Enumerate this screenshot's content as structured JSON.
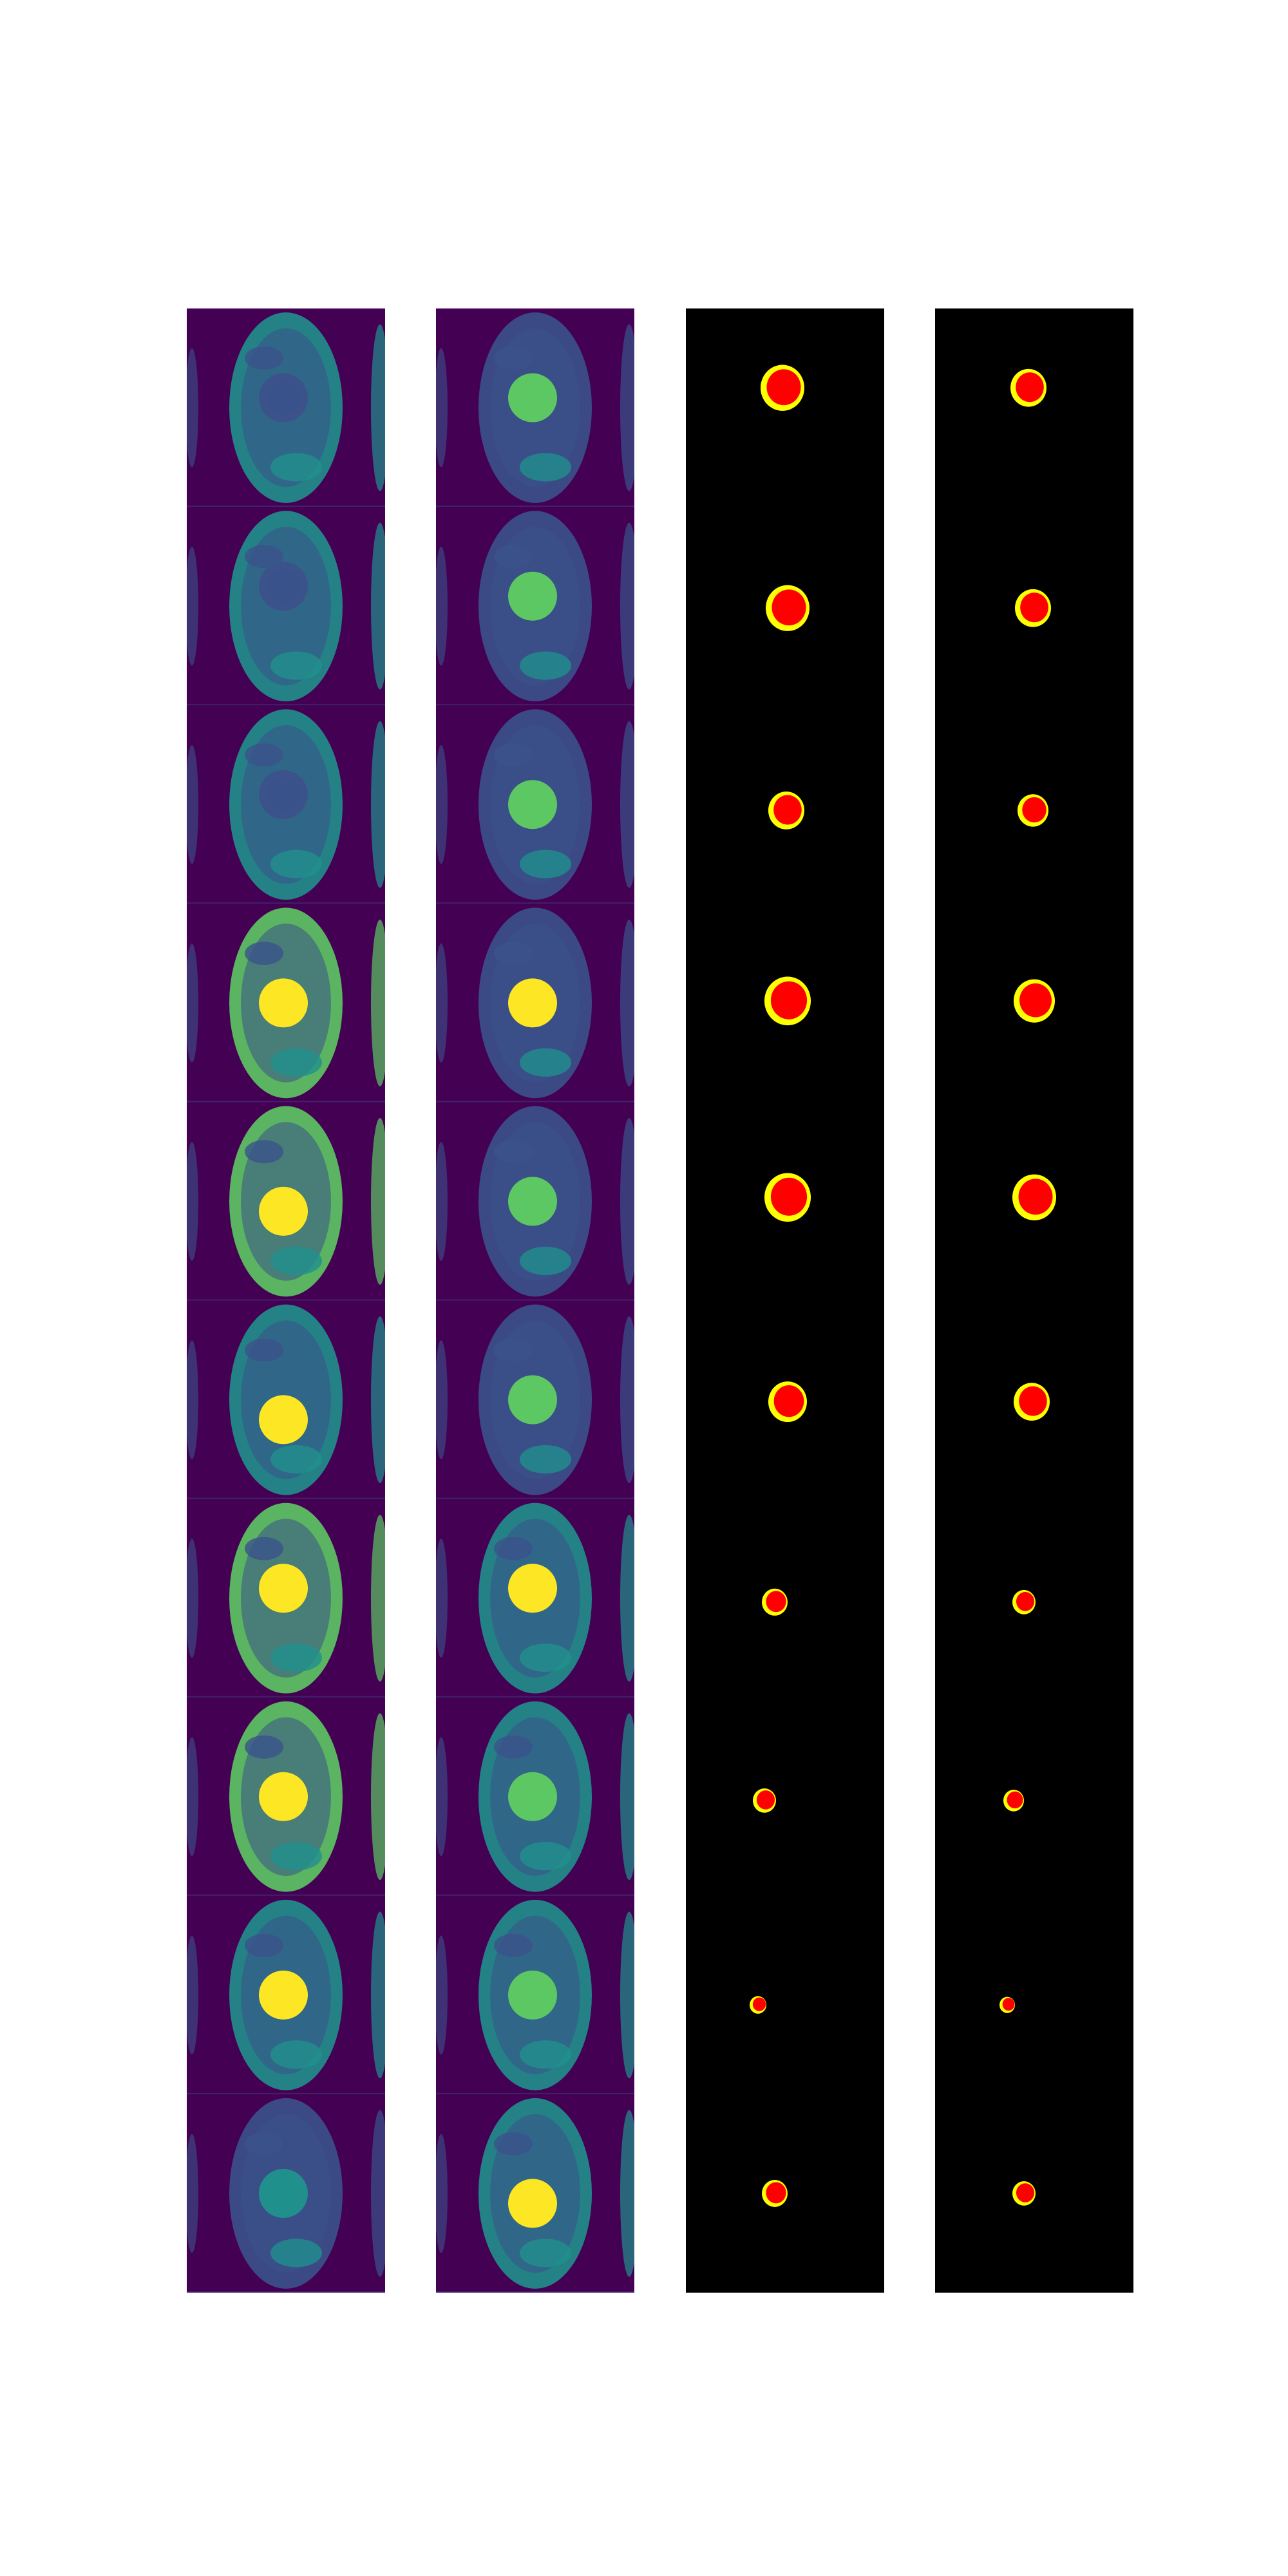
{
  "figure": {
    "background_color": "#ffffff",
    "columns": [
      {
        "id": "mri-1",
        "kind": "mri-image-strip",
        "tiles": 10
      },
      {
        "id": "mri-2",
        "kind": "mri-image-strip",
        "tiles": 10
      },
      {
        "id": "seg-1",
        "kind": "segmentation-mask-strip",
        "tiles": 10
      },
      {
        "id": "seg-2",
        "kind": "segmentation-mask-strip",
        "tiles": 10
      }
    ],
    "colormap": {
      "dark": "#440154",
      "blue": "#3b528b",
      "teal": "#21908d",
      "green": "#5dc863",
      "yellow": "#fde725"
    },
    "mask_colors": {
      "background": "#000000",
      "cavity": "#ff0000",
      "wall": "#ffff00"
    }
  }
}
